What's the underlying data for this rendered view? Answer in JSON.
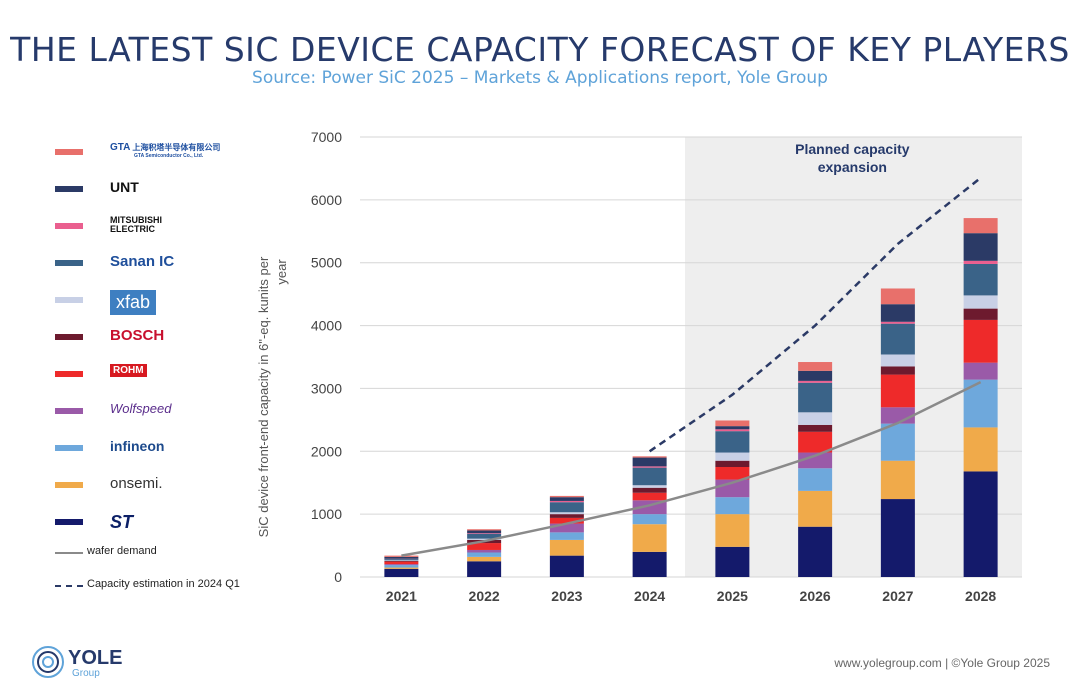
{
  "title": "THE LATEST SIC DEVICE CAPACITY FORECAST OF KEY PLAYERS",
  "subtitle": "Source: Power SiC 2025 – Markets & Applications report, Yole Group",
  "footer": {
    "url": "www.yolegroup.com | ©Yole Group 2025",
    "logo_text": "YOLE",
    "logo_sub": "Group"
  },
  "legend": {
    "items": [
      {
        "name": "GTA Semiconductor",
        "logo_text": "上海积塔半导体有限公司",
        "logo_sub": "GTA Semiconductor Co., Ltd.",
        "logo_mark": "GTA",
        "color": "#e8706b"
      },
      {
        "name": "UNT",
        "logo_text": "UNT",
        "color": "#2b3a66"
      },
      {
        "name": "Mitsubishi Electric",
        "logo_text": "MITSUBISHI",
        "logo_sub": "ELECTRIC",
        "color": "#ea5f8f"
      },
      {
        "name": "Sanan IC",
        "logo_text": "Sanan IC",
        "color": "#3a6388"
      },
      {
        "name": "X-FAB",
        "logo_text": "xfab",
        "color": "#c8d0e6"
      },
      {
        "name": "Bosch",
        "logo_text": "BOSCH",
        "color": "#6d1a2e"
      },
      {
        "name": "ROHM",
        "logo_text": "ROHM",
        "color": "#ee2a2a"
      },
      {
        "name": "Wolfspeed",
        "logo_text": "Wolfspeed",
        "color": "#9a5aa8"
      },
      {
        "name": "Infineon",
        "logo_text": "infineon",
        "color": "#6ea8dc"
      },
      {
        "name": "onsemi",
        "logo_text": "onsemi.",
        "color": "#f0aa4a"
      },
      {
        "name": "ST",
        "logo_text": "ST",
        "color": "#141a6b"
      }
    ],
    "wafer_demand_label": "wafer demand",
    "capacity_estimation_label": "Capacity estimation in 2024 Q1"
  },
  "chart_data": {
    "type": "bar",
    "stacked": true,
    "categories": [
      "2021",
      "2022",
      "2023",
      "2024",
      "2025",
      "2026",
      "2027",
      "2028"
    ],
    "ylabel": "SiC device front-end capacity in 6\"-eq. kunits per year",
    "ylim": [
      0,
      7000
    ],
    "yticks": [
      0,
      1000,
      2000,
      3000,
      4000,
      5000,
      6000,
      7000
    ],
    "grid": true,
    "shaded_region": {
      "from": "2025",
      "to": "2028",
      "label": "Planned capacity expansion"
    },
    "series": [
      {
        "name": "ST",
        "color": "#141a6b",
        "values": [
          130,
          250,
          340,
          400,
          480,
          800,
          1240,
          1680
        ]
      },
      {
        "name": "onsemi",
        "color": "#f0aa4a",
        "values": [
          20,
          70,
          250,
          440,
          520,
          570,
          610,
          700
        ]
      },
      {
        "name": "Infineon",
        "color": "#6ea8dc",
        "values": [
          40,
          70,
          120,
          160,
          270,
          360,
          590,
          760
        ]
      },
      {
        "name": "Wolfspeed",
        "color": "#9a5aa8",
        "values": [
          15,
          40,
          140,
          220,
          280,
          250,
          260,
          270
        ]
      },
      {
        "name": "ROHM",
        "color": "#ee2a2a",
        "values": [
          40,
          110,
          90,
          120,
          200,
          330,
          520,
          680
        ]
      },
      {
        "name": "Bosch",
        "color": "#6d1a2e",
        "values": [
          10,
          50,
          60,
          80,
          100,
          110,
          130,
          180
        ]
      },
      {
        "name": "X-FAB",
        "color": "#c8d0e6",
        "values": [
          10,
          20,
          30,
          40,
          130,
          200,
          190,
          210
        ]
      },
      {
        "name": "Sanan IC",
        "color": "#3a6388",
        "values": [
          20,
          80,
          160,
          280,
          340,
          470,
          490,
          500
        ]
      },
      {
        "name": "Mitsubishi Electric",
        "color": "#ea5f8f",
        "values": [
          5,
          10,
          20,
          20,
          30,
          30,
          30,
          50
        ]
      },
      {
        "name": "UNT",
        "color": "#2b3a66",
        "values": [
          30,
          40,
          60,
          140,
          50,
          160,
          280,
          440
        ]
      },
      {
        "name": "GTA Semiconductor",
        "color": "#e8706b",
        "values": [
          20,
          20,
          20,
          20,
          90,
          140,
          250,
          240
        ]
      }
    ],
    "lines": [
      {
        "name": "wafer demand",
        "color": "#8a8a8a",
        "style": "solid",
        "x": [
          "2021",
          "2022",
          "2023",
          "2024",
          "2025",
          "2026",
          "2027",
          "2028"
        ],
        "values": [
          340,
          570,
          850,
          1140,
          1500,
          1930,
          2450,
          3100
        ]
      },
      {
        "name": "Capacity estimation in 2024 Q1",
        "color": "#2b3a66",
        "style": "dashed",
        "x": [
          "2024",
          "2025",
          "2026",
          "2027",
          "2028"
        ],
        "values": [
          2000,
          2900,
          4000,
          5300,
          6350
        ]
      }
    ]
  }
}
